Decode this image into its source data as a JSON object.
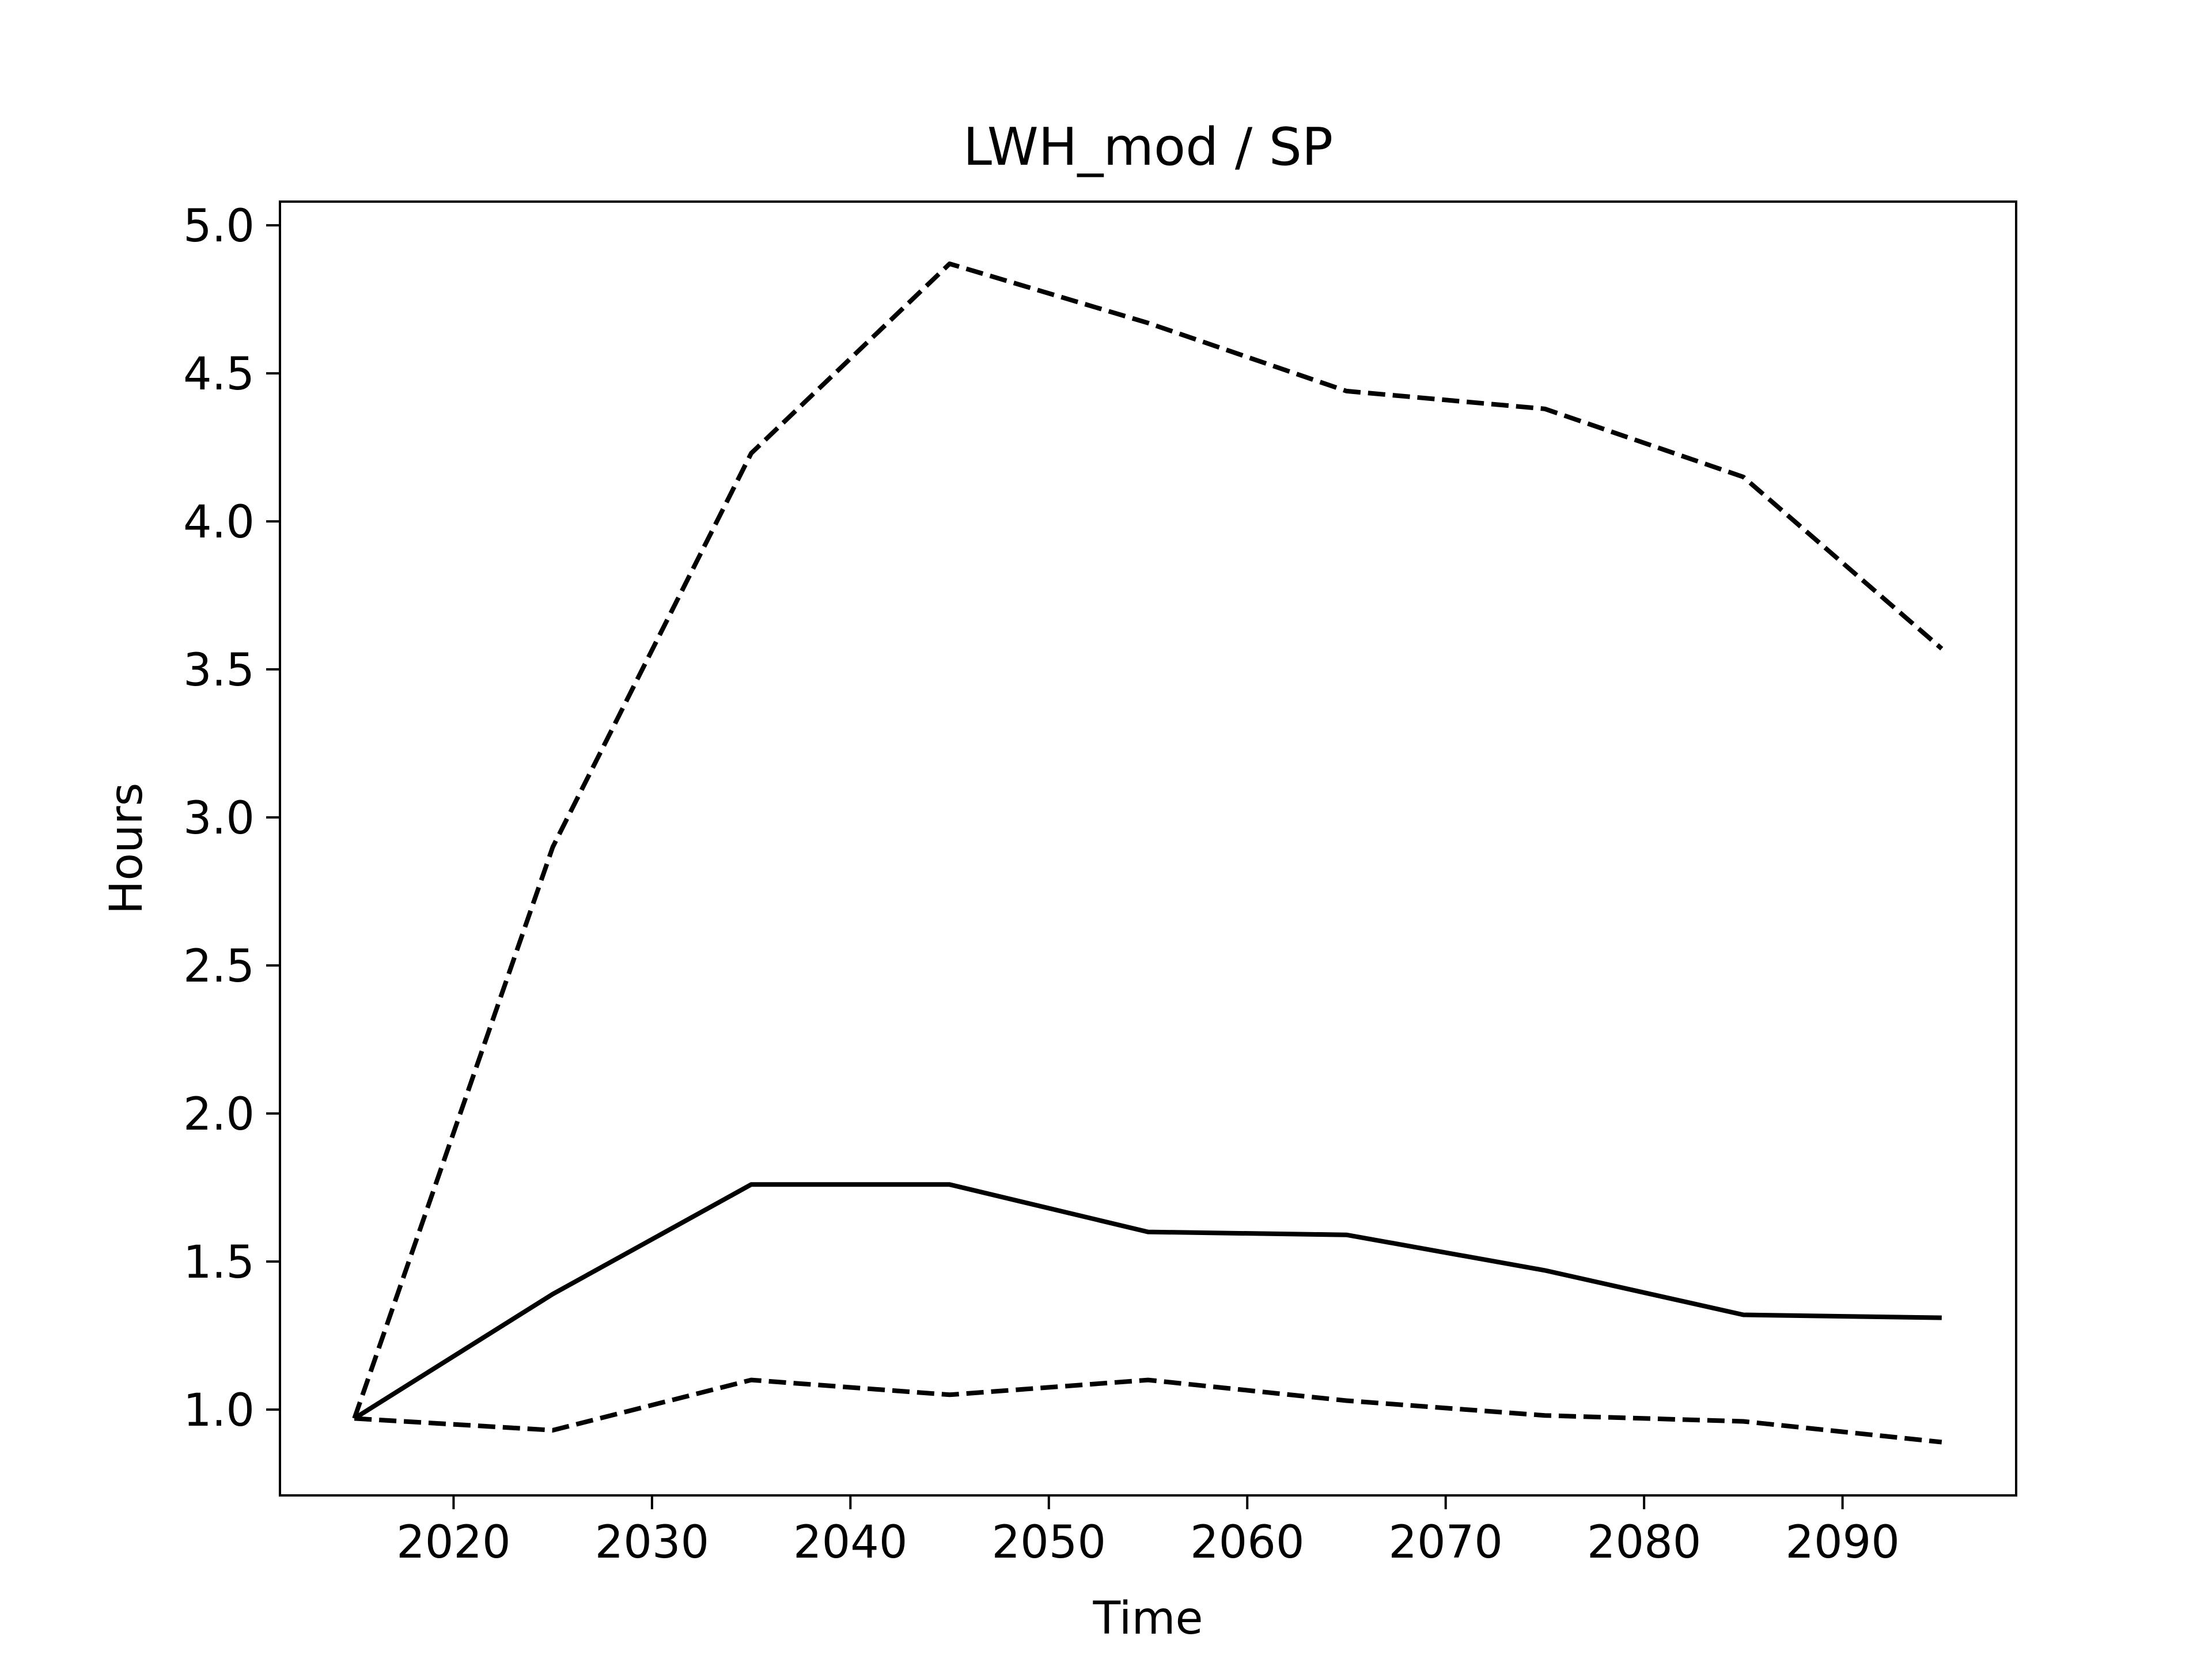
{
  "chart_data": {
    "type": "line",
    "title": "LWH_mod / SP",
    "xlabel": "Time",
    "ylabel": "Hours",
    "xlim": [
      2011.25,
      2098.75
    ],
    "ylim": [
      0.71,
      5.08
    ],
    "xticks": [
      2020,
      2030,
      2040,
      2050,
      2060,
      2070,
      2080,
      2090
    ],
    "yticks": [
      1.0,
      1.5,
      2.0,
      2.5,
      3.0,
      3.5,
      4.0,
      4.5,
      5.0
    ],
    "xtick_labels": [
      "2020",
      "2030",
      "2040",
      "2050",
      "2060",
      "2070",
      "2080",
      "2090"
    ],
    "ytick_labels": [
      "1.0",
      "1.5",
      "2.0",
      "2.5",
      "3.0",
      "3.5",
      "4.0",
      "4.5",
      "5.0"
    ],
    "grid": false,
    "x": [
      2015,
      2025,
      2035,
      2045,
      2055,
      2065,
      2075,
      2085,
      2095
    ],
    "series": [
      {
        "style": "dashed",
        "color": "#000000",
        "values": [
          0.97,
          2.9,
          4.23,
          4.87,
          4.67,
          4.44,
          4.38,
          4.15,
          3.57
        ]
      },
      {
        "style": "solid",
        "color": "#000000",
        "values": [
          0.97,
          1.39,
          1.76,
          1.76,
          1.6,
          1.59,
          1.47,
          1.32,
          1.31
        ]
      },
      {
        "style": "dashed",
        "color": "#000000",
        "values": [
          0.97,
          0.93,
          1.1,
          1.05,
          1.1,
          1.03,
          0.98,
          0.96,
          0.89
        ]
      }
    ]
  }
}
